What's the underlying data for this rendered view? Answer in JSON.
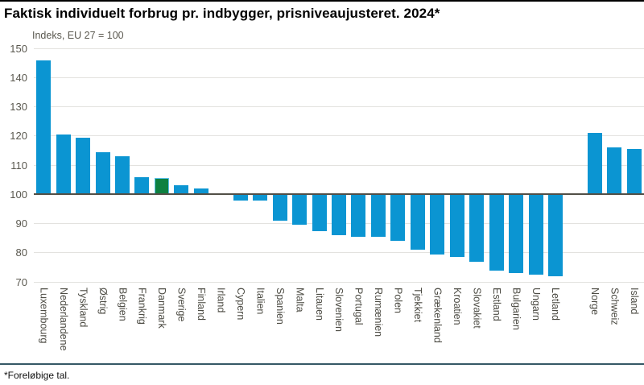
{
  "header": {
    "title": "Faktisk individuelt forbrug pr. indbygger, prisniveaujusteret. 2024*",
    "subtitle": "Indeks, EU 27 = 100"
  },
  "footer": {
    "note": "*Foreløbige tal."
  },
  "colors": {
    "bar": "#0b95d2",
    "highlight_bar": "#0e8040",
    "highlight_border": "#57c0ea",
    "gridline": "#e3e2df",
    "baseline": "#514f47",
    "axis_text": "#5a584f",
    "label_text": "#4c4b43",
    "top_rule": "#000000",
    "bottom_rule": "#355866"
  },
  "chart_data": {
    "type": "bar",
    "title": "Faktisk individuelt forbrug pr. indbygger, prisniveaujusteret. 2024*",
    "subtitle": "Indeks, EU 27 = 100",
    "xlabel": "",
    "ylabel": "Indeks, EU 27 = 100",
    "ylim": [
      70,
      150
    ],
    "yticks": [
      150,
      140,
      130,
      120,
      110,
      100,
      90,
      80,
      70
    ],
    "baseline": 100,
    "grid": true,
    "legend": false,
    "highlight_category": "Danmark",
    "highlight_index": 6,
    "gap_after_index": 26,
    "categories": [
      "Luxembourg",
      "Nederlandene",
      "Tyskland",
      "Østrig",
      "Belgien",
      "Frankrig",
      "Danmark",
      "Sverige",
      "Finland",
      "Irland",
      "Cypern",
      "Italien",
      "Spanien",
      "Malta",
      "Litauen",
      "Slovenien",
      "Portugal",
      "Rumænien",
      "Polen",
      "Tjekkiet",
      "Grækenland",
      "Kroatien",
      "Slovakiet",
      "Estland",
      "Bulgarien",
      "Ungarn",
      "Letland",
      "Norge",
      "Schweiz",
      "Island"
    ],
    "values": [
      146,
      120.5,
      119.5,
      114.5,
      113,
      106,
      105.5,
      103,
      102,
      100,
      98,
      98,
      91,
      89.5,
      87.5,
      86,
      85.5,
      85.5,
      84,
      81,
      79.5,
      78.5,
      77,
      74,
      73,
      72.5,
      72,
      121,
      116,
      115.5
    ]
  }
}
